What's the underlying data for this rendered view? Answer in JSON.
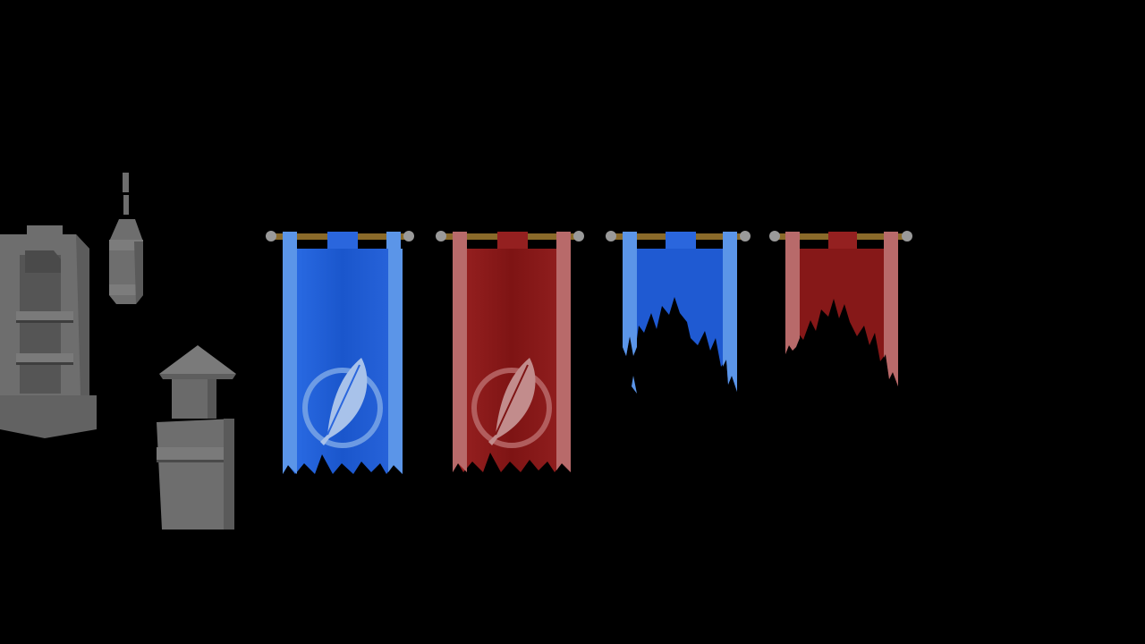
{
  "scene": {
    "background": "#000000",
    "untextured_prop_color": "#6b6b6b",
    "props": [
      {
        "name": "stone-shrine",
        "textured": false
      },
      {
        "name": "hanging-lantern",
        "textured": false
      },
      {
        "name": "stone-chimney",
        "textured": false
      }
    ],
    "banners": [
      {
        "name": "banner-blue-intact",
        "cloth_color": "#1f5fd6",
        "stripe_color": "#5b95e8",
        "emblem": "feather-icon",
        "condition": "intact"
      },
      {
        "name": "banner-red-intact",
        "cloth_color": "#8a1a1a",
        "stripe_color": "#b86a6a",
        "emblem": "feather-icon",
        "condition": "intact"
      },
      {
        "name": "banner-blue-torn",
        "cloth_color": "#1f5fd6",
        "stripe_color": "#5b95e8",
        "emblem": "",
        "condition": "torn"
      },
      {
        "name": "banner-red-torn",
        "cloth_color": "#8a1a1a",
        "stripe_color": "#b86a6a",
        "emblem": "",
        "condition": "torn"
      }
    ],
    "rod": {
      "wood_color": "#8a6a2a",
      "finial_color": "#9a9a9a"
    }
  }
}
